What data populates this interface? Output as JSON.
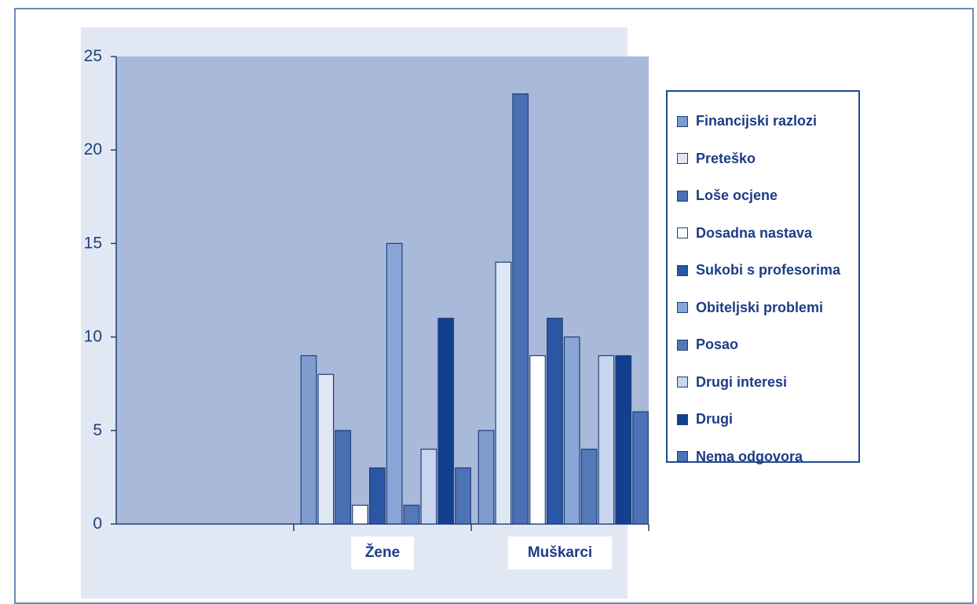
{
  "chart_data": {
    "type": "bar",
    "categories": [
      "",
      "Žene",
      "Muškarci"
    ],
    "yticks": [
      "0",
      "5",
      "10",
      "15",
      "20",
      "25"
    ],
    "ylim": [
      0,
      25
    ],
    "grid": false,
    "legend_position": "right",
    "series": [
      {
        "name": "Financijski razlozi",
        "values": [
          null,
          9,
          5
        ],
        "color": "#7e9dcf"
      },
      {
        "name": "Preteško",
        "values": [
          null,
          8,
          14
        ],
        "color": "#dfe7f4"
      },
      {
        "name": "Loše ocjene",
        "values": [
          null,
          5,
          23
        ],
        "color": "#4a6fb3"
      },
      {
        "name": "Dosadna nastava",
        "values": [
          null,
          1,
          9
        ],
        "color": "#ffffff"
      },
      {
        "name": "Sukobi s profesorima",
        "values": [
          null,
          3,
          11
        ],
        "color": "#2a56a3"
      },
      {
        "name": "Obiteljski problemi",
        "values": [
          null,
          15,
          10
        ],
        "color": "#8aa6d6"
      },
      {
        "name": "Posao",
        "values": [
          null,
          1,
          4
        ],
        "color": "#5578b8"
      },
      {
        "name": "Drugi interesi",
        "values": [
          null,
          4,
          9
        ],
        "color": "#c7d6ee"
      },
      {
        "name": "Drugi",
        "values": [
          null,
          11,
          9
        ],
        "color": "#123f8f"
      },
      {
        "name": "Nema odgovora",
        "values": [
          null,
          3,
          6
        ],
        "color": "#4d72b5"
      }
    ]
  }
}
